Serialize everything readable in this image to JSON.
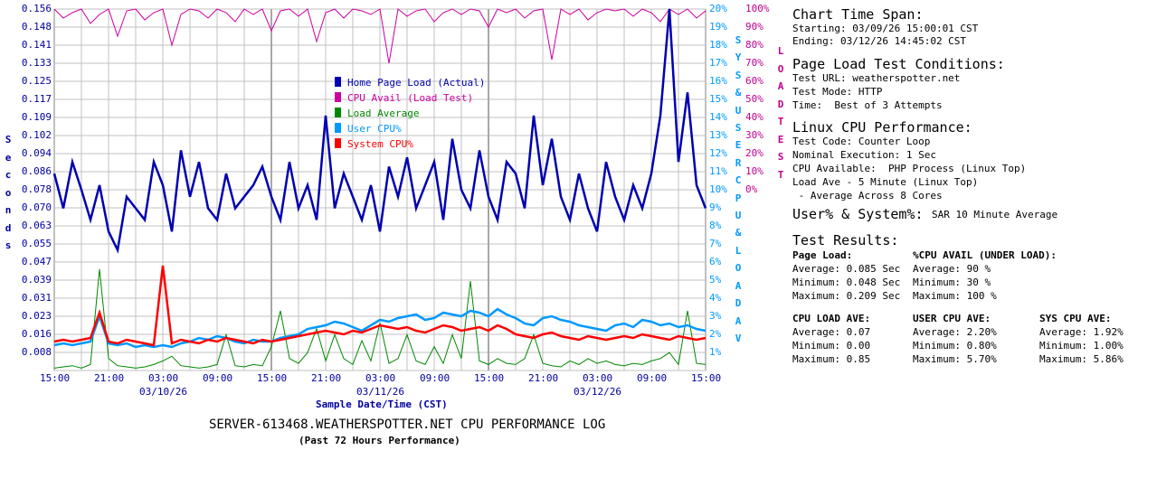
{
  "chart_data": {
    "type": "line",
    "title": "SERVER-613468.WEATHERSPOTTER.NET CPU PERFORMANCE LOG",
    "subtitle": "(Past 72 Hours Performance)",
    "xlabel": "Sample Date/Time (CST)",
    "ylabel": "Seconds",
    "y2label": "SYS & USER CPU & LOAD AV",
    "y3label": "LOAD TEST",
    "ylim": [
      0,
      0.156
    ],
    "y2lim": [
      0,
      20
    ],
    "y3lim": [
      0,
      100
    ],
    "grid": true,
    "legend_position": "top-center",
    "x_tick_labels": [
      "15:00",
      "21:00",
      "03:00",
      "09:00",
      "15:00",
      "21:00",
      "03:00",
      "09:00",
      "15:00",
      "21:00",
      "03:00",
      "09:00",
      "15:00"
    ],
    "x_date_labels": [
      "03/10/26",
      "03/11/26",
      "03/12/26"
    ],
    "y_tick_labels": [
      "0.156",
      "0.148",
      "0.141",
      "0.133",
      "0.125",
      "0.117",
      "0.109",
      "0.102",
      "0.094",
      "0.086",
      "0.078",
      "0.070",
      "0.063",
      "0.055",
      "0.047",
      "0.039",
      "0.031",
      "0.023",
      "0.016",
      "0.008"
    ],
    "y2_tick_labels": [
      "20%",
      "19%",
      "18%",
      "17%",
      "16%",
      "15%",
      "14%",
      "13%",
      "12%",
      "11%",
      "10%",
      "9%",
      "8%",
      "7%",
      "6%",
      "5%",
      "4%",
      "3%",
      "2%",
      "1%"
    ],
    "y3_tick_labels": [
      "100%",
      "90%",
      "80%",
      "70%",
      "60%",
      "50%",
      "40%",
      "30%",
      "20%",
      "10%",
      "0%"
    ],
    "series": [
      {
        "name": "Home Page Load (Actual)",
        "color": "#0000b0",
        "axis": "seconds",
        "values": [
          0.085,
          0.07,
          0.09,
          0.078,
          0.065,
          0.08,
          0.06,
          0.052,
          0.075,
          0.07,
          0.065,
          0.09,
          0.08,
          0.06,
          0.095,
          0.075,
          0.09,
          0.07,
          0.065,
          0.085,
          0.07,
          0.075,
          0.08,
          0.088,
          0.075,
          0.065,
          0.09,
          0.07,
          0.08,
          0.065,
          0.11,
          0.07,
          0.085,
          0.075,
          0.065,
          0.08,
          0.06,
          0.088,
          0.075,
          0.092,
          0.07,
          0.08,
          0.09,
          0.065,
          0.1,
          0.078,
          0.07,
          0.095,
          0.075,
          0.065,
          0.09,
          0.085,
          0.07,
          0.11,
          0.08,
          0.1,
          0.075,
          0.065,
          0.085,
          0.07,
          0.06,
          0.09,
          0.075,
          0.065,
          0.08,
          0.07,
          0.085,
          0.11,
          0.16,
          0.09,
          0.12,
          0.08,
          0.07
        ]
      },
      {
        "name": "CPU Avail (Load Test)",
        "color": "#cc00a0",
        "axis": "load-test",
        "values": [
          100,
          95,
          98,
          100,
          92,
          97,
          100,
          85,
          99,
          100,
          94,
          98,
          100,
          80,
          97,
          100,
          99,
          95,
          100,
          98,
          93,
          100,
          97,
          100,
          88,
          99,
          100,
          96,
          100,
          82,
          98,
          100,
          95,
          100,
          99,
          97,
          100,
          70,
          100,
          96,
          99,
          100,
          93,
          98,
          100,
          97,
          100,
          99,
          90,
          100,
          98,
          100,
          95,
          99,
          100,
          72,
          100,
          97,
          100,
          94,
          98,
          100,
          99,
          100,
          96,
          100,
          98,
          93,
          100,
          97,
          100,
          95,
          99
        ]
      },
      {
        "name": "Load Average",
        "color": "#008800",
        "axis": "load",
        "values": [
          0.02,
          0.03,
          0.04,
          0.02,
          0.05,
          0.85,
          0.1,
          0.04,
          0.03,
          0.02,
          0.03,
          0.05,
          0.08,
          0.12,
          0.04,
          0.03,
          0.02,
          0.03,
          0.05,
          0.3,
          0.04,
          0.03,
          0.05,
          0.04,
          0.2,
          0.5,
          0.1,
          0.06,
          0.15,
          0.35,
          0.08,
          0.3,
          0.1,
          0.05,
          0.25,
          0.08,
          0.4,
          0.06,
          0.1,
          0.3,
          0.08,
          0.05,
          0.2,
          0.06,
          0.3,
          0.1,
          0.75,
          0.08,
          0.05,
          0.1,
          0.06,
          0.05,
          0.1,
          0.3,
          0.06,
          0.04,
          0.03,
          0.08,
          0.05,
          0.1,
          0.06,
          0.08,
          0.05,
          0.04,
          0.06,
          0.05,
          0.08,
          0.1,
          0.15,
          0.05,
          0.5,
          0.06,
          0.05
        ]
      },
      {
        "name": "User CPU%",
        "color": "#0099ff",
        "axis": "cpu",
        "values": [
          1.4,
          1.5,
          1.4,
          1.5,
          1.6,
          3.0,
          1.5,
          1.4,
          1.5,
          1.3,
          1.4,
          1.3,
          1.4,
          1.3,
          1.5,
          1.6,
          1.8,
          1.7,
          1.9,
          1.8,
          1.6,
          1.5,
          1.7,
          1.6,
          1.6,
          1.8,
          1.9,
          2.0,
          2.3,
          2.4,
          2.5,
          2.7,
          2.6,
          2.4,
          2.2,
          2.5,
          2.8,
          2.7,
          2.9,
          3.0,
          3.1,
          2.8,
          2.9,
          3.2,
          3.1,
          3.0,
          3.3,
          3.2,
          3.0,
          3.4,
          3.1,
          2.9,
          2.6,
          2.5,
          2.9,
          3.0,
          2.8,
          2.7,
          2.5,
          2.4,
          2.3,
          2.2,
          2.5,
          2.6,
          2.4,
          2.8,
          2.7,
          2.5,
          2.6,
          2.4,
          2.5,
          2.3,
          2.2
        ]
      },
      {
        "name": "System CPU%",
        "color": "#ff0000",
        "axis": "cpu",
        "values": [
          1.6,
          1.7,
          1.6,
          1.7,
          1.8,
          3.2,
          1.6,
          1.5,
          1.7,
          1.6,
          1.5,
          1.4,
          5.8,
          1.5,
          1.7,
          1.6,
          1.5,
          1.7,
          1.6,
          1.8,
          1.7,
          1.6,
          1.5,
          1.7,
          1.6,
          1.7,
          1.8,
          1.9,
          2.0,
          2.1,
          2.2,
          2.1,
          2.0,
          2.2,
          2.1,
          2.3,
          2.5,
          2.4,
          2.3,
          2.4,
          2.2,
          2.1,
          2.3,
          2.5,
          2.4,
          2.2,
          2.3,
          2.4,
          2.2,
          2.5,
          2.3,
          2.0,
          1.9,
          1.8,
          2.0,
          2.1,
          1.9,
          1.8,
          1.7,
          1.9,
          1.8,
          1.7,
          1.8,
          1.9,
          1.8,
          2.0,
          1.9,
          1.8,
          1.7,
          1.9,
          1.8,
          1.7,
          1.8
        ]
      }
    ]
  },
  "info": {
    "span_title": "Chart Time Span:",
    "span_start": "Starting: 03/09/26 15:00:01 CST",
    "span_end": "Ending: 03/12/26 14:45:02 CST",
    "cond_title": "Page Load Test Conditions:",
    "cond_url": "Test URL: weatherspotter.net",
    "cond_mode": "Test Mode: HTTP",
    "cond_time": "Time:  Best of 3 Attempts",
    "linux_title": "Linux CPU Performance:",
    "linux_code": "Test Code: Counter Loop",
    "linux_nominal": "Nominal Execution: 1 Sec",
    "linux_avail": "CPU Available:  PHP Process (Linux Top)",
    "linux_load": "Load Ave - 5 Minute (Linux Top)",
    "linux_cores": " - Average Across 8 Cores",
    "usersys_title": "User% & System%:",
    "usersys_value": "SAR 10 Minute Average",
    "results_title": "Test Results:",
    "pl_head": "Page Load:",
    "pl_avg": "Average: 0.085 Sec",
    "pl_min": "Minimum: 0.048 Sec",
    "pl_max": "Maximum: 0.209 Sec",
    "ca_head": "%CPU AVAIL (UNDER LOAD):",
    "ca_avg": "Average: 90 %",
    "ca_min": "Minimum: 30 %",
    "ca_max": "Maximum: 100 %",
    "la_head": "CPU LOAD AVE:",
    "la_avg": "Average: 0.07",
    "la_min": "Minimum: 0.00",
    "la_max": "Maximum: 0.85",
    "uc_head": "USER CPU AVE:",
    "uc_avg": "Average: 2.20%",
    "uc_min": "Minimum: 0.80%",
    "uc_max": "Maximum: 5.70%",
    "sc_head": "SYS CPU AVE:",
    "sc_avg": "Average: 1.92%",
    "sc_min": "Minimum: 1.00%",
    "sc_max": "Maximum: 5.86%"
  }
}
